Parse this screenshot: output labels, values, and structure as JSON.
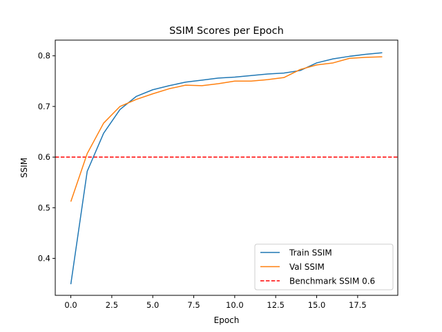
{
  "chart_data": {
    "type": "line",
    "title": "SSIM Scores per Epoch",
    "xlabel": "Epoch",
    "ylabel": "SSIM",
    "xlim": [
      -0.95,
      19.95
    ],
    "ylim": [
      0.327,
      0.831
    ],
    "x_ticks": [
      0,
      2.5,
      5,
      7.5,
      10,
      12.5,
      15,
      17.5
    ],
    "x_tick_labels": [
      "0.0",
      "2.5",
      "5.0",
      "7.5",
      "10.0",
      "12.5",
      "15.0",
      "17.5"
    ],
    "y_ticks": [
      0.4,
      0.5,
      0.6,
      0.7,
      0.8
    ],
    "y_tick_labels": [
      "0.4",
      "0.5",
      "0.6",
      "0.7",
      "0.8"
    ],
    "grid": false,
    "legend_position": "lower-right",
    "x": [
      0,
      1,
      2,
      3,
      4,
      5,
      6,
      7,
      8,
      9,
      10,
      11,
      12,
      13,
      14,
      15,
      16,
      17,
      18,
      19
    ],
    "series": [
      {
        "name": "Train SSIM",
        "color": "#1f77b4",
        "style": "solid",
        "values": [
          0.349,
          0.572,
          0.647,
          0.694,
          0.72,
          0.733,
          0.741,
          0.748,
          0.752,
          0.756,
          0.758,
          0.761,
          0.764,
          0.766,
          0.771,
          0.786,
          0.794,
          0.799,
          0.803,
          0.806
        ]
      },
      {
        "name": "Val SSIM",
        "color": "#ff7f0e",
        "style": "solid",
        "values": [
          0.512,
          0.607,
          0.667,
          0.7,
          0.714,
          0.725,
          0.735,
          0.742,
          0.741,
          0.745,
          0.75,
          0.75,
          0.753,
          0.757,
          0.773,
          0.782,
          0.786,
          0.795,
          0.797,
          0.798
        ]
      }
    ],
    "reference_lines": [
      {
        "name": "Benchmark SSIM 0.6",
        "y": 0.6,
        "color": "#ff0000",
        "style": "dashed"
      }
    ]
  }
}
